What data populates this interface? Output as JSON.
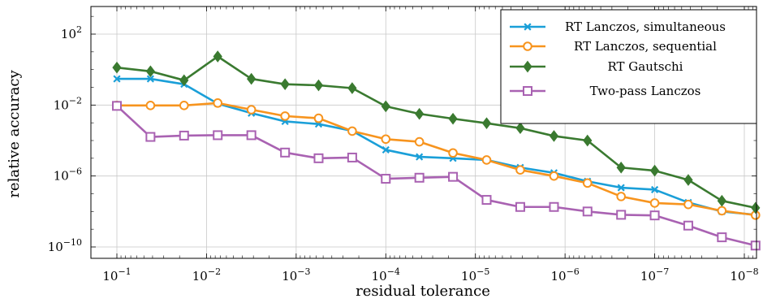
{
  "chart_data": {
    "type": "line",
    "xlabel": "residual tolerance",
    "ylabel": "relative accuracy",
    "x_scale": "log",
    "x_reversed": true,
    "y_scale": "log",
    "xlim": [
      0.1,
      1e-08
    ],
    "ylim": [
      1e-10,
      1000.0
    ],
    "x_tick_labels": [
      {
        "base": "10",
        "exp": "−1"
      },
      {
        "base": "10",
        "exp": "−2"
      },
      {
        "base": "10",
        "exp": "−3"
      },
      {
        "base": "10",
        "exp": "−4"
      },
      {
        "base": "10",
        "exp": "−5"
      },
      {
        "base": "10",
        "exp": "−6"
      },
      {
        "base": "10",
        "exp": "−7"
      },
      {
        "base": "10",
        "exp": "−8"
      }
    ],
    "y_tick_labels": [
      {
        "base": "10",
        "exp": "−10"
      },
      {
        "base": "10",
        "exp": "−6"
      },
      {
        "base": "10",
        "exp": "−2"
      },
      {
        "base": "10",
        "exp": "2"
      }
    ],
    "grid": true,
    "legend_position": "top-right",
    "x": [
      0.1,
      0.0422,
      0.0178,
      0.0075,
      0.00316,
      0.00133,
      0.000562,
      0.000237,
      0.0001,
      4.22e-05,
      1.78e-05,
      7.5e-06,
      3.16e-06,
      1.33e-06,
      5.62e-07,
      2.37e-07,
      1e-07,
      4.22e-08,
      1.78e-08,
      7.5e-09
    ],
    "series": [
      {
        "name": "RT Lanczos, simultaneous",
        "color": "#1a9fd8",
        "marker": "x",
        "values": [
          0.3,
          0.3,
          0.15,
          0.012,
          0.0035,
          0.0012,
          0.00085,
          0.00035,
          3e-05,
          1.2e-05,
          1e-05,
          8e-06,
          3e-06,
          1.5e-06,
          5e-07,
          2.2e-07,
          1.7e-07,
          3.2e-08,
          1e-08,
          6.5e-09
        ]
      },
      {
        "name": "RT Lanczos, sequential",
        "color": "#f7941e",
        "marker": "circle",
        "values": [
          0.0095,
          0.0095,
          0.0095,
          0.013,
          0.0055,
          0.0024,
          0.0018,
          0.00034,
          0.00012,
          8.5e-05,
          2e-05,
          8e-06,
          2.2e-06,
          1e-06,
          4e-07,
          7e-08,
          3e-08,
          2.5e-08,
          1.1e-08,
          6.2e-09
        ]
      },
      {
        "name": "RT Gautschi",
        "color": "#3a7a30",
        "marker": "diamond",
        "values": [
          1.3,
          0.8,
          0.25,
          5.5,
          0.3,
          0.15,
          0.13,
          0.09,
          0.0085,
          0.0032,
          0.0017,
          0.00095,
          0.0005,
          0.00018,
          0.0001,
          3e-06,
          2e-06,
          6e-07,
          4e-08,
          1.6e-08
        ]
      },
      {
        "name": "Two-pass Lanczos",
        "color": "#a962b2",
        "marker": "square",
        "values": [
          0.009,
          0.00016,
          0.00019,
          0.0002,
          0.0002,
          2.1e-05,
          1e-05,
          1.1e-05,
          7e-07,
          8e-07,
          9e-07,
          4.5e-08,
          1.8e-08,
          1.8e-08,
          1e-08,
          6.5e-09,
          6e-09,
          1.6e-09,
          3.5e-10,
          1.2e-10
        ]
      }
    ]
  }
}
